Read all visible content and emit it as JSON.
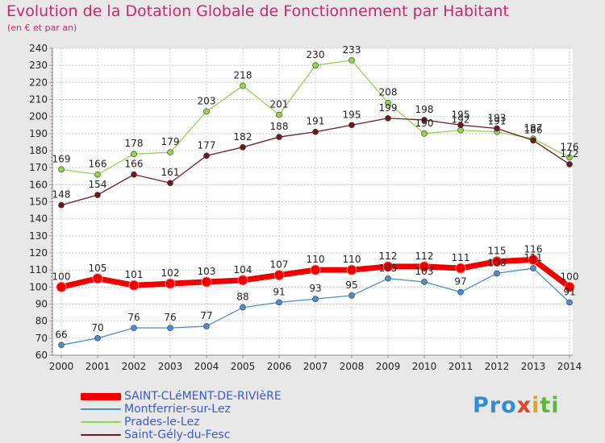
{
  "title": "Evolution de la Dotation Globale de Fonctionnement par Habitant",
  "subtitle": "(en € et par an)",
  "logo_text": "Proxiti",
  "chart_data": {
    "type": "line",
    "title": "Evolution de la Dotation Globale de Fonctionnement par Habitant",
    "subtitle": "(en € et par an)",
    "xlabel": "",
    "ylabel": "",
    "x": [
      "2000",
      "2001",
      "2002",
      "2003",
      "2004",
      "2005",
      "2006",
      "2007",
      "2008",
      "2009",
      "2010",
      "2011",
      "2012",
      "2013",
      "2014"
    ],
    "ylim": [
      60,
      240
    ],
    "yticks": [
      60,
      70,
      80,
      90,
      100,
      110,
      120,
      130,
      140,
      150,
      160,
      170,
      180,
      190,
      200,
      210,
      220,
      230,
      240
    ],
    "grid": true,
    "legend_position": "bottom-left",
    "series": [
      {
        "name": "SAINT-CLéMENT-DE-RIVIèRE",
        "color": "#ee0000",
        "emphasis": true,
        "values": [
          100,
          105,
          101,
          102,
          103,
          104,
          107,
          110,
          110,
          112,
          112,
          111,
          115,
          116,
          100
        ]
      },
      {
        "name": "Montferrier-sur-Lez",
        "color": "#4a8ed0",
        "values": [
          66,
          70,
          76,
          76,
          77,
          88,
          91,
          93,
          95,
          105,
          103,
          97,
          108,
          111,
          91
        ]
      },
      {
        "name": "Prades-le-Lez",
        "color": "#8ed84a",
        "values": [
          169,
          166,
          178,
          179,
          203,
          218,
          201,
          230,
          233,
          208,
          190,
          192,
          191,
          187,
          176
        ]
      },
      {
        "name": "Saint-Gély-du-Fesc",
        "color": "#6e1a1a",
        "values": [
          148,
          154,
          166,
          161,
          177,
          182,
          188,
          191,
          195,
          199,
          198,
          195,
          193,
          186,
          172
        ]
      }
    ]
  }
}
